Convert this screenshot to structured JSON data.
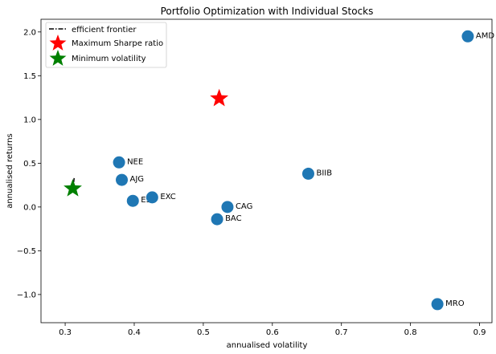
{
  "chart_data": {
    "type": "scatter",
    "title": "Portfolio Optimization with Individual Stocks",
    "xlabel": "annualised volatility",
    "ylabel": "annualised returns",
    "xlim": [
      0.265,
      0.918
    ],
    "ylim": [
      -1.322,
      2.145
    ],
    "x_ticks": [
      0.3,
      0.4,
      0.5,
      0.6,
      0.7,
      0.8,
      0.9
    ],
    "y_ticks": [
      -1.0,
      -0.5,
      0.0,
      0.5,
      1.0,
      1.5,
      2.0
    ],
    "x_tick_labels": [
      "0.3",
      "0.4",
      "0.5",
      "0.6",
      "0.7",
      "0.8",
      "0.9"
    ],
    "y_tick_labels": [
      "−1.0",
      "−0.5",
      "0.0",
      "0.5",
      "1.0",
      "1.5",
      "2.0"
    ],
    "grid": false,
    "legend_position": "top-left",
    "legend": [
      "efficient frontier",
      "Maximum Sharpe ratio",
      "Minimum volatility"
    ],
    "stocks": [
      {
        "name": "AMD",
        "x": 0.883,
        "y": 1.95
      },
      {
        "name": "NEE",
        "x": 0.378,
        "y": 0.51
      },
      {
        "name": "AJG",
        "x": 0.382,
        "y": 0.31
      },
      {
        "name": "BIIB",
        "x": 0.652,
        "y": 0.38
      },
      {
        "name": "ESS",
        "x": 0.398,
        "y": 0.07
      },
      {
        "name": "EXC",
        "x": 0.426,
        "y": 0.11
      },
      {
        "name": "CAG",
        "x": 0.535,
        "y": 0.0
      },
      {
        "name": "BAC",
        "x": 0.52,
        "y": -0.14
      },
      {
        "name": "MRO",
        "x": 0.839,
        "y": -1.11
      }
    ],
    "efficient_frontier": [
      {
        "x": 0.313,
        "y": 0.33
      },
      {
        "x": 0.312,
        "y": 0.26
      },
      {
        "x": 0.311,
        "y": 0.22
      }
    ],
    "max_sharpe": {
      "x": 0.523,
      "y": 1.24
    },
    "min_volatility": {
      "x": 0.311,
      "y": 0.21
    },
    "colors": {
      "stock": "#1f77b4",
      "max_sharpe": "#ff0000",
      "min_volatility": "#008000",
      "frontier": "#000000"
    }
  }
}
